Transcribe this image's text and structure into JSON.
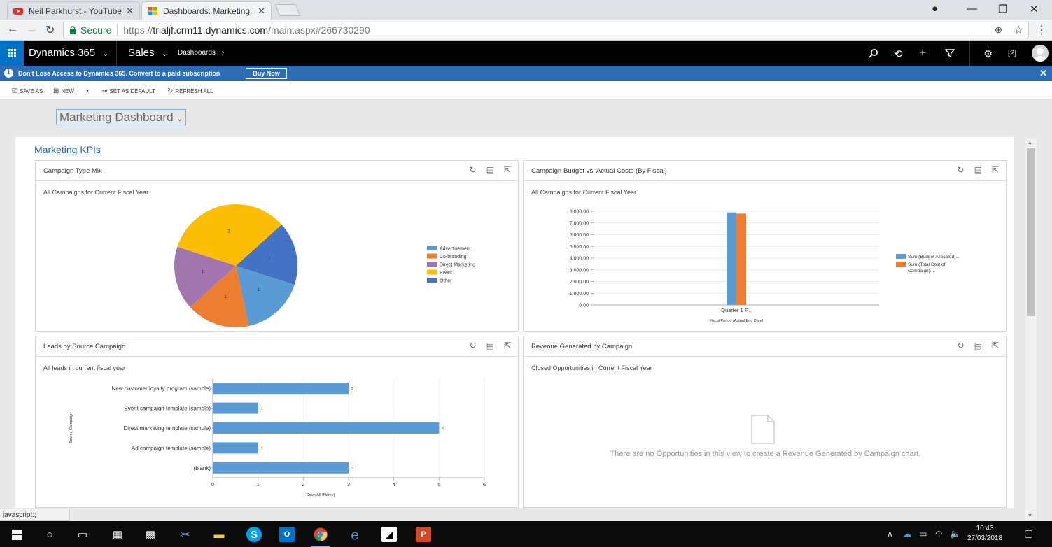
{
  "browser": {
    "tabs": [
      {
        "title": "Neil Parkhurst - YouTube",
        "icon": "youtube-icon"
      },
      {
        "title": "Dashboards: Marketing D",
        "icon": "microsoft-icon"
      }
    ],
    "secure_label": "Secure",
    "url_scheme": "https://",
    "url_host": "trialjf.crm11.dynamics.com",
    "url_path": "/main.aspx#266730290"
  },
  "nav": {
    "app_name": "Dynamics 365",
    "area": "Sales",
    "breadcrumb": "Dashboards",
    "icons": [
      "search-icon",
      "history-icon",
      "plus-icon",
      "filter-icon",
      "gear-icon",
      "help-icon"
    ]
  },
  "notification": {
    "message": "Don't Lose Access to Dynamics 365. Convert to a paid subscription",
    "button": "Buy Now"
  },
  "commands": {
    "save_as": "SAVE AS",
    "new": "NEW",
    "set_default": "SET AS DEFAULT",
    "refresh_all": "REFRESH ALL"
  },
  "dashboard": {
    "selector": "Marketing Dashboard",
    "section_title": "Marketing KPIs"
  },
  "panels": {
    "campaign_type_mix": {
      "title": "Campaign Type Mix",
      "subtitle": "All Campaigns for Current Fiscal Year"
    },
    "budget_vs_actual": {
      "title": "Campaign Budget vs. Actual Costs (By Fiscal)",
      "subtitle": "All Campaigns for Current Fiscal Year"
    },
    "leads_by_source": {
      "title": "Leads by Source Campaign",
      "subtitle": "All leads in current fiscal year"
    },
    "revenue_by_campaign": {
      "title": "Revenue Generated by Campaign",
      "subtitle": "Closed Opportunities in Current Fiscal Year",
      "empty_message": "There are no Opportunities in this view to create a Revenue Generated by Campaign chart."
    }
  },
  "chart_data": [
    {
      "type": "pie",
      "title": "Campaign Type Mix",
      "legend_position": "right",
      "slices": [
        {
          "label": "Event",
          "value": 2,
          "color": "#fcbe05"
        },
        {
          "label": "Other",
          "value": 1,
          "color": "#4472c4"
        },
        {
          "label": "Advertisement",
          "value": 1,
          "color": "#5b9bd5"
        },
        {
          "label": "Co-branding",
          "value": 1,
          "color": "#ed7d31"
        },
        {
          "label": "Direct Marketing",
          "value": 1,
          "color": "#a275af"
        }
      ],
      "legend": [
        {
          "label": "Advertisement",
          "color": "#5b9bd5"
        },
        {
          "label": "Co-branding",
          "color": "#ed7d31"
        },
        {
          "label": "Direct Marketing",
          "color": "#a275af"
        },
        {
          "label": "Event",
          "color": "#fcbe05"
        },
        {
          "label": "Other",
          "color": "#4472c4"
        }
      ]
    },
    {
      "type": "bar",
      "title": "Campaign Budget vs. Actual Costs (By Fiscal)",
      "categories": [
        "Quarter 1 F..."
      ],
      "xlabel": "Fiscal Period (Actual End Date)",
      "ylim": [
        0,
        8000
      ],
      "yticks": [
        "0.00",
        "1,000.00",
        "2,000.00",
        "3,000.00",
        "4,000.00",
        "5,000.00",
        "6,000.00",
        "7,000.00",
        "8,000.00"
      ],
      "legend_position": "right",
      "series": [
        {
          "name": "Sum (Budget Allocated)...",
          "values": [
            7900
          ],
          "color": "#5b9bd5"
        },
        {
          "name": "Sum (Total Cost of Campaign)...",
          "values": [
            7800
          ],
          "color": "#ed7d31"
        }
      ]
    },
    {
      "type": "bar",
      "orientation": "horizontal",
      "title": "Leads by Source Campaign",
      "categories": [
        "New customer loyalty program (sample)",
        "Event campaign template (sample)",
        "Direct marketing template (sample)",
        "Ad campaign template (sample)",
        "(blank)"
      ],
      "values": [
        3,
        1,
        5,
        1,
        3
      ],
      "color": "#5b9bd5",
      "xlabel": "CountAll (Name)",
      "ylabel": "Source Campaign",
      "xlim": [
        0,
        6
      ],
      "xticks": [
        "0",
        "1",
        "2",
        "3",
        "4",
        "5",
        "6"
      ]
    }
  ],
  "status_bar": "javascript:;",
  "taskbar": {
    "time": "10:43",
    "date": "27/03/2018"
  }
}
